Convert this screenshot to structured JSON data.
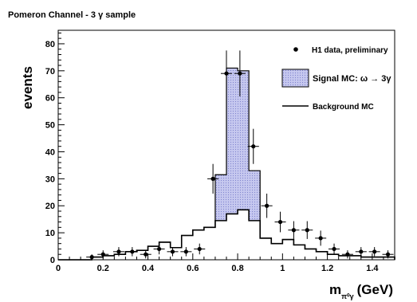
{
  "chart_data": {
    "type": "histogram",
    "title": "Pomeron Channel - 3 γ sample",
    "ylabel": "events",
    "xlabel": {
      "main": "m",
      "sub": "π⁰γ",
      "unit": "(GeV)"
    },
    "xlim": [
      0,
      1.5
    ],
    "ylim": [
      0,
      85
    ],
    "x_ticks": [
      {
        "value": 0,
        "label": "0"
      },
      {
        "value": 0.2,
        "label": "0.2"
      },
      {
        "value": 0.4,
        "label": "0.4"
      },
      {
        "value": 0.6,
        "label": "0.6"
      },
      {
        "value": 0.8,
        "label": "0.8"
      },
      {
        "value": 1.0,
        "label": "1"
      },
      {
        "value": 1.2,
        "label": "1.2"
      },
      {
        "value": 1.4,
        "label": "1.4"
      }
    ],
    "y_ticks": [
      {
        "value": 0,
        "label": "0"
      },
      {
        "value": 10,
        "label": "10"
      },
      {
        "value": 20,
        "label": "20"
      },
      {
        "value": 30,
        "label": "30"
      },
      {
        "value": 40,
        "label": "40"
      },
      {
        "value": 50,
        "label": "50"
      },
      {
        "value": 60,
        "label": "60"
      },
      {
        "value": 70,
        "label": "70"
      },
      {
        "value": 80,
        "label": "80"
      }
    ],
    "legend": {
      "placement": "top-right",
      "entries": [
        {
          "key": "data",
          "label": "H1 data, preliminary"
        },
        {
          "key": "signal",
          "label": "Signal MC: ω → 3γ"
        },
        {
          "key": "background",
          "label": "Background MC"
        }
      ]
    },
    "bin_edges": [
      0,
      0.05,
      0.1,
      0.15,
      0.2,
      0.25,
      0.3,
      0.35,
      0.4,
      0.45,
      0.5,
      0.55,
      0.6,
      0.65,
      0.7,
      0.75,
      0.8,
      0.85,
      0.9,
      0.95,
      1.0,
      1.05,
      1.1,
      1.15,
      1.2,
      1.25,
      1.3,
      1.35,
      1.4,
      1.45,
      1.5
    ],
    "series": [
      {
        "key": "background",
        "name": "Background MC",
        "values": [
          0,
          0,
          0,
          1,
          1.5,
          2,
          3,
          3.5,
          5,
          6.5,
          4.5,
          9,
          11,
          12,
          14.5,
          17,
          18.5,
          14.5,
          8,
          6,
          7.5,
          5.5,
          4,
          3,
          2,
          1.5,
          1.5,
          1,
          1,
          1
        ]
      },
      {
        "key": "signal_total",
        "name": "Signal MC: ω → 3γ",
        "values": [
          0,
          0,
          0,
          1,
          1.5,
          2,
          3,
          3.5,
          5,
          6.5,
          4.5,
          9,
          11,
          12,
          31.5,
          71,
          70,
          33,
          8,
          6,
          7.5,
          5.5,
          4,
          3,
          2,
          1.5,
          1.5,
          1,
          1,
          1
        ]
      },
      {
        "key": "data",
        "name": "H1 data, preliminary",
        "points": [
          {
            "x": 0.15,
            "y": 1,
            "yerr": 1
          },
          {
            "x": 0.2,
            "y": 2,
            "yerr": 1.5
          },
          {
            "x": 0.27,
            "y": 3,
            "yerr": 1.7
          },
          {
            "x": 0.33,
            "y": 3,
            "yerr": 1.7
          },
          {
            "x": 0.39,
            "y": 2,
            "yerr": 1.5
          },
          {
            "x": 0.45,
            "y": 4,
            "yerr": 2
          },
          {
            "x": 0.51,
            "y": 3,
            "yerr": 1.7
          },
          {
            "x": 0.57,
            "y": 3,
            "yerr": 1.7
          },
          {
            "x": 0.63,
            "y": 4,
            "yerr": 2
          },
          {
            "x": 0.69,
            "y": 30,
            "yerr": 5.5
          },
          {
            "x": 0.75,
            "y": 69,
            "yerr": 8.5
          },
          {
            "x": 0.81,
            "y": 69,
            "yerr": 8.5
          },
          {
            "x": 0.87,
            "y": 42,
            "yerr": 6.5
          },
          {
            "x": 0.93,
            "y": 20,
            "yerr": 4.5
          },
          {
            "x": 0.99,
            "y": 14,
            "yerr": 3.8
          },
          {
            "x": 1.05,
            "y": 11,
            "yerr": 3.3
          },
          {
            "x": 1.11,
            "y": 11,
            "yerr": 3.3
          },
          {
            "x": 1.17,
            "y": 8,
            "yerr": 2.8
          },
          {
            "x": 1.23,
            "y": 4,
            "yerr": 2
          },
          {
            "x": 1.29,
            "y": 2,
            "yerr": 1.5
          },
          {
            "x": 1.35,
            "y": 3,
            "yerr": 1.7
          },
          {
            "x": 1.41,
            "y": 3,
            "yerr": 1.7
          },
          {
            "x": 1.47,
            "y": 2,
            "yerr": 1.5
          }
        ]
      }
    ],
    "colors": {
      "signal_fill": "#c6c8ef",
      "signal_edge": "#000000",
      "background": "#000000",
      "data": "#000000"
    }
  }
}
